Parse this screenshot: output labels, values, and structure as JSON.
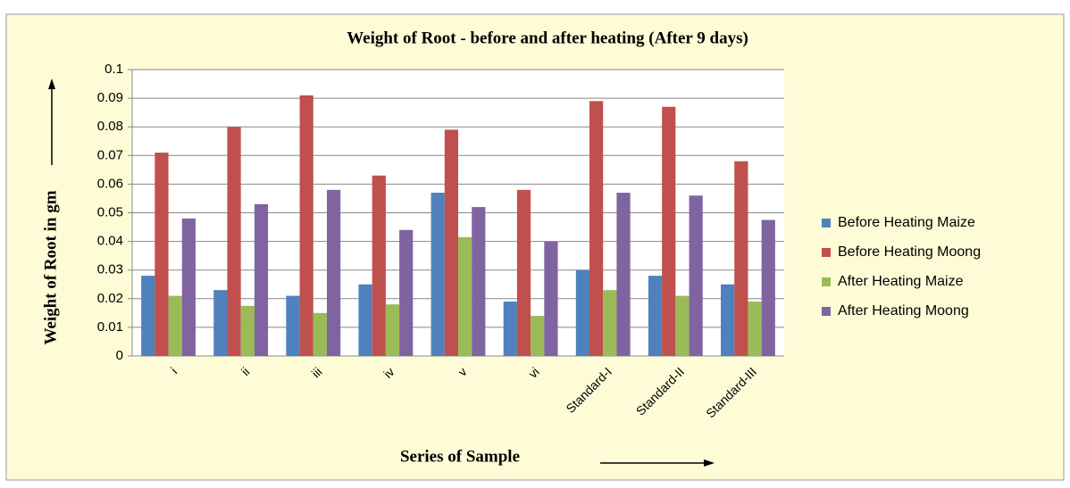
{
  "chart_data": {
    "type": "bar",
    "title": "Weight of Root - before and after heating (After 9 days)",
    "x_label": "Series of Sample",
    "y_label": "Weight of Root in gm",
    "categories": [
      "i",
      "ii",
      "iii",
      "iv",
      "v",
      "vi",
      "Standard-I",
      "Standard-II",
      "Standard-III"
    ],
    "series": [
      {
        "name": "Before Heating Maize",
        "color": "#4f81bd",
        "values": [
          0.028,
          0.023,
          0.021,
          0.025,
          0.057,
          0.019,
          0.03,
          0.028,
          0.025
        ]
      },
      {
        "name": "Before Heating Moong",
        "color": "#c0504d",
        "values": [
          0.071,
          0.08,
          0.091,
          0.063,
          0.079,
          0.058,
          0.089,
          0.087,
          0.068
        ]
      },
      {
        "name": "After Heating Maize",
        "color": "#9bbb59",
        "values": [
          0.021,
          0.0175,
          0.015,
          0.018,
          0.0415,
          0.014,
          0.023,
          0.021,
          0.019
        ]
      },
      {
        "name": "After Heating Moong",
        "color": "#8064a2",
        "values": [
          0.048,
          0.053,
          0.058,
          0.044,
          0.052,
          0.04,
          0.057,
          0.056,
          0.0475
        ]
      }
    ],
    "ylim": [
      0,
      0.1
    ],
    "yticks": [
      0,
      0.01,
      0.02,
      0.03,
      0.04,
      0.05,
      0.06,
      0.07,
      0.08,
      0.09,
      0.1
    ],
    "grid": true,
    "legend": "right"
  }
}
